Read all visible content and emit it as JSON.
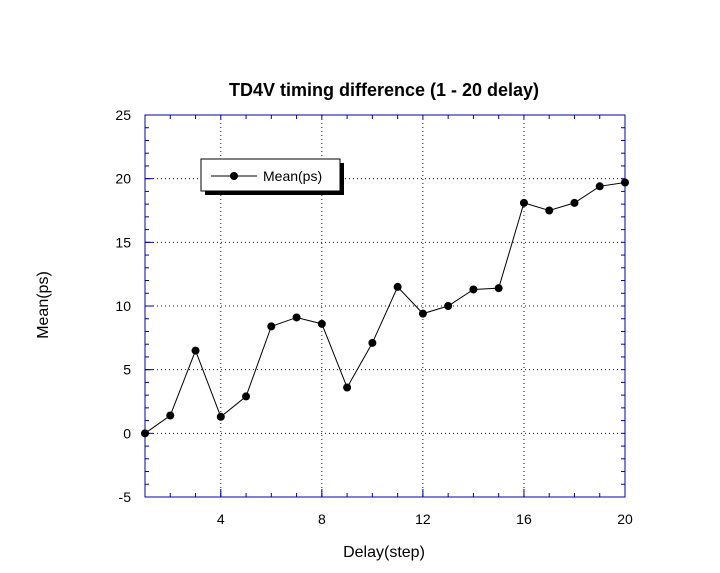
{
  "chart_data": {
    "type": "line",
    "title": "TD4V timing difference (1 - 20 delay)",
    "xlabel": "Delay(step)",
    "ylabel": "Mean(ps)",
    "xlim": [
      1,
      20
    ],
    "ylim": [
      -5,
      25
    ],
    "x_ticks": [
      4,
      8,
      12,
      16,
      20
    ],
    "y_ticks": [
      -5,
      0,
      5,
      10,
      15,
      20,
      25
    ],
    "grid": true,
    "legend_position": "top-left",
    "series": [
      {
        "name": "Mean(ps)",
        "x": [
          1,
          2,
          3,
          4,
          5,
          6,
          7,
          8,
          9,
          10,
          11,
          12,
          13,
          14,
          15,
          16,
          17,
          18,
          19,
          20
        ],
        "values": [
          0.0,
          1.4,
          6.5,
          1.3,
          2.9,
          8.4,
          9.1,
          8.6,
          3.6,
          7.1,
          11.5,
          9.4,
          10.0,
          11.3,
          11.4,
          18.1,
          17.5,
          18.1,
          19.4,
          19.7
        ]
      }
    ],
    "colors": {
      "line": "#000000",
      "marker": "#000000",
      "grid": "#0000cc",
      "frame": "#0000aa"
    }
  }
}
